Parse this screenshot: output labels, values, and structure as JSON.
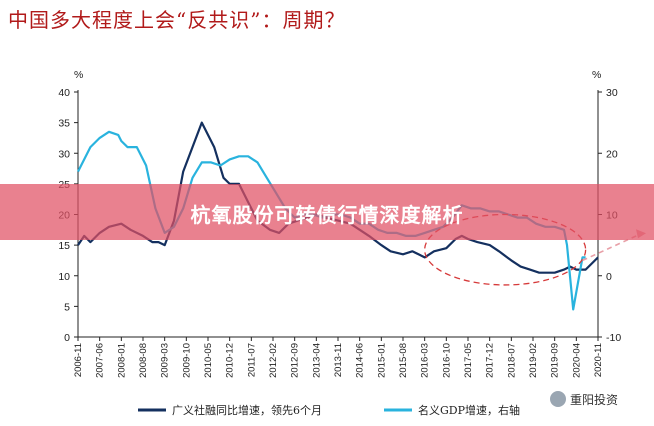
{
  "title": "中国多大程度上会“反共识”：周期？",
  "banner": "杭氧股份可转债行情深度解析",
  "watermark": "重阳投资",
  "colors": {
    "title": "#b11a1a",
    "series_dark": "#14305f",
    "series_light": "#29b3de",
    "ellipse": "#d63a3a",
    "arrow": "#e8a0a8",
    "banner": "#e05064"
  },
  "chart_data": {
    "type": "line",
    "xlabel": "",
    "ylabel_left": "%",
    "ylabel_right": "%",
    "ylim_left": [
      0,
      40
    ],
    "ylim_right": [
      -10,
      30
    ],
    "yticks_left": [
      "0",
      "5",
      "10",
      "15",
      "20",
      "25",
      "30",
      "35",
      "40"
    ],
    "yticks_right": [
      "-10",
      "0",
      "10",
      "20",
      "30"
    ],
    "x_ticks": [
      "2006-11",
      "2007-06",
      "2008-01",
      "2008-08",
      "2009-03",
      "2009-10",
      "2010-05",
      "2010-12",
      "2011-07",
      "2012-02",
      "2012-09",
      "2013-04",
      "2013-11",
      "2014-06",
      "2015-01",
      "2015-08",
      "2016-03",
      "2016-10",
      "2017-05",
      "2017-12",
      "2018-07",
      "2019-02",
      "2019-09",
      "2020-04",
      "2020-11"
    ],
    "series": [
      {
        "name": "广义社融同比增速，领先6个月",
        "axis": "left",
        "color": "#14305f",
        "points": [
          [
            "2006-11",
            15.0
          ],
          [
            "2007-01",
            16.5
          ],
          [
            "2007-03",
            15.5
          ],
          [
            "2007-06",
            17.0
          ],
          [
            "2007-09",
            18.0
          ],
          [
            "2008-01",
            18.5
          ],
          [
            "2008-04",
            17.5
          ],
          [
            "2008-08",
            16.5
          ],
          [
            "2008-11",
            15.5
          ],
          [
            "2009-01",
            15.5
          ],
          [
            "2009-03",
            15.0
          ],
          [
            "2009-06",
            19.0
          ],
          [
            "2009-09",
            27.0
          ],
          [
            "2009-12",
            31.0
          ],
          [
            "2010-03",
            35.0
          ],
          [
            "2010-05",
            33.0
          ],
          [
            "2010-07",
            31.0
          ],
          [
            "2010-10",
            26.0
          ],
          [
            "2010-12",
            25.0
          ],
          [
            "2011-03",
            25.0
          ],
          [
            "2011-06",
            22.0
          ],
          [
            "2011-09",
            19.0
          ],
          [
            "2012-01",
            17.5
          ],
          [
            "2012-04",
            17.0
          ],
          [
            "2012-07",
            18.5
          ],
          [
            "2012-10",
            19.0
          ],
          [
            "2013-01",
            19.5
          ],
          [
            "2013-04",
            20.0
          ],
          [
            "2013-07",
            19.5
          ],
          [
            "2013-11",
            19.0
          ],
          [
            "2014-03",
            18.5
          ],
          [
            "2014-06",
            17.5
          ],
          [
            "2014-09",
            16.5
          ],
          [
            "2015-01",
            15.0
          ],
          [
            "2015-04",
            14.0
          ],
          [
            "2015-08",
            13.5
          ],
          [
            "2015-11",
            14.0
          ],
          [
            "2016-01",
            13.5
          ],
          [
            "2016-03",
            13.0
          ],
          [
            "2016-06",
            14.0
          ],
          [
            "2016-10",
            14.5
          ],
          [
            "2017-01",
            16.0
          ],
          [
            "2017-03",
            16.5
          ],
          [
            "2017-05",
            16.0
          ],
          [
            "2017-08",
            15.5
          ],
          [
            "2017-12",
            15.0
          ],
          [
            "2018-03",
            14.0
          ],
          [
            "2018-07",
            12.5
          ],
          [
            "2018-10",
            11.5
          ],
          [
            "2019-01",
            11.0
          ],
          [
            "2019-04",
            10.5
          ],
          [
            "2019-07",
            10.5
          ],
          [
            "2019-09",
            10.5
          ],
          [
            "2019-12",
            11.0
          ],
          [
            "2020-02",
            11.5
          ],
          [
            "2020-04",
            11.0
          ],
          [
            "2020-07",
            11.0
          ],
          [
            "2020-09",
            12.0
          ],
          [
            "2020-11",
            13.0
          ]
        ]
      },
      {
        "name": "名义GDP增速，右轴",
        "axis": "right",
        "color": "#29b3de",
        "points": [
          [
            "2006-11",
            17.0
          ],
          [
            "2007-03",
            21.0
          ],
          [
            "2007-06",
            22.5
          ],
          [
            "2007-09",
            23.5
          ],
          [
            "2007-12",
            23.0
          ],
          [
            "2008-01",
            22.0
          ],
          [
            "2008-03",
            21.0
          ],
          [
            "2008-06",
            21.0
          ],
          [
            "2008-09",
            18.0
          ],
          [
            "2008-12",
            11.0
          ],
          [
            "2009-03",
            7.0
          ],
          [
            "2009-06",
            8.0
          ],
          [
            "2009-09",
            11.0
          ],
          [
            "2009-12",
            16.0
          ],
          [
            "2010-03",
            18.5
          ],
          [
            "2010-06",
            18.5
          ],
          [
            "2010-09",
            18.0
          ],
          [
            "2010-12",
            19.0
          ],
          [
            "2011-03",
            19.5
          ],
          [
            "2011-06",
            19.5
          ],
          [
            "2011-09",
            18.5
          ],
          [
            "2011-12",
            16.0
          ],
          [
            "2012-03",
            13.5
          ],
          [
            "2012-06",
            11.0
          ],
          [
            "2012-09",
            9.5
          ],
          [
            "2012-12",
            10.0
          ],
          [
            "2013-03",
            10.0
          ],
          [
            "2013-06",
            9.5
          ],
          [
            "2013-09",
            10.0
          ],
          [
            "2013-12",
            10.0
          ],
          [
            "2014-03",
            9.5
          ],
          [
            "2014-06",
            8.5
          ],
          [
            "2014-09",
            8.5
          ],
          [
            "2014-12",
            7.5
          ],
          [
            "2015-03",
            7.0
          ],
          [
            "2015-06",
            7.0
          ],
          [
            "2015-09",
            6.5
          ],
          [
            "2015-12",
            6.5
          ],
          [
            "2016-03",
            7.0
          ],
          [
            "2016-06",
            7.5
          ],
          [
            "2016-09",
            8.0
          ],
          [
            "2016-12",
            9.5
          ],
          [
            "2017-03",
            11.5
          ],
          [
            "2017-06",
            11.0
          ],
          [
            "2017-09",
            11.0
          ],
          [
            "2017-12",
            10.5
          ],
          [
            "2018-03",
            10.5
          ],
          [
            "2018-06",
            10.0
          ],
          [
            "2018-09",
            9.5
          ],
          [
            "2018-12",
            9.5
          ],
          [
            "2019-03",
            8.5
          ],
          [
            "2019-06",
            8.0
          ],
          [
            "2019-09",
            8.0
          ],
          [
            "2019-12",
            7.5
          ],
          [
            "2020-01",
            5.0
          ],
          [
            "2020-03",
            -5.5
          ],
          [
            "2020-06",
            3.0
          ],
          [
            "2020-07",
            3.0
          ]
        ]
      }
    ],
    "annotations": [
      {
        "type": "dashed-ellipse",
        "x_range": [
          "2016-03",
          "2020-07"
        ],
        "y_left_range": [
          8.5,
          20.0
        ]
      },
      {
        "type": "dashed-arrow",
        "from": [
          "2020-06",
          12.5
        ],
        "to": [
          "2020-11",
          14.5
        ]
      }
    ],
    "grid": false,
    "legend_position": "bottom"
  }
}
